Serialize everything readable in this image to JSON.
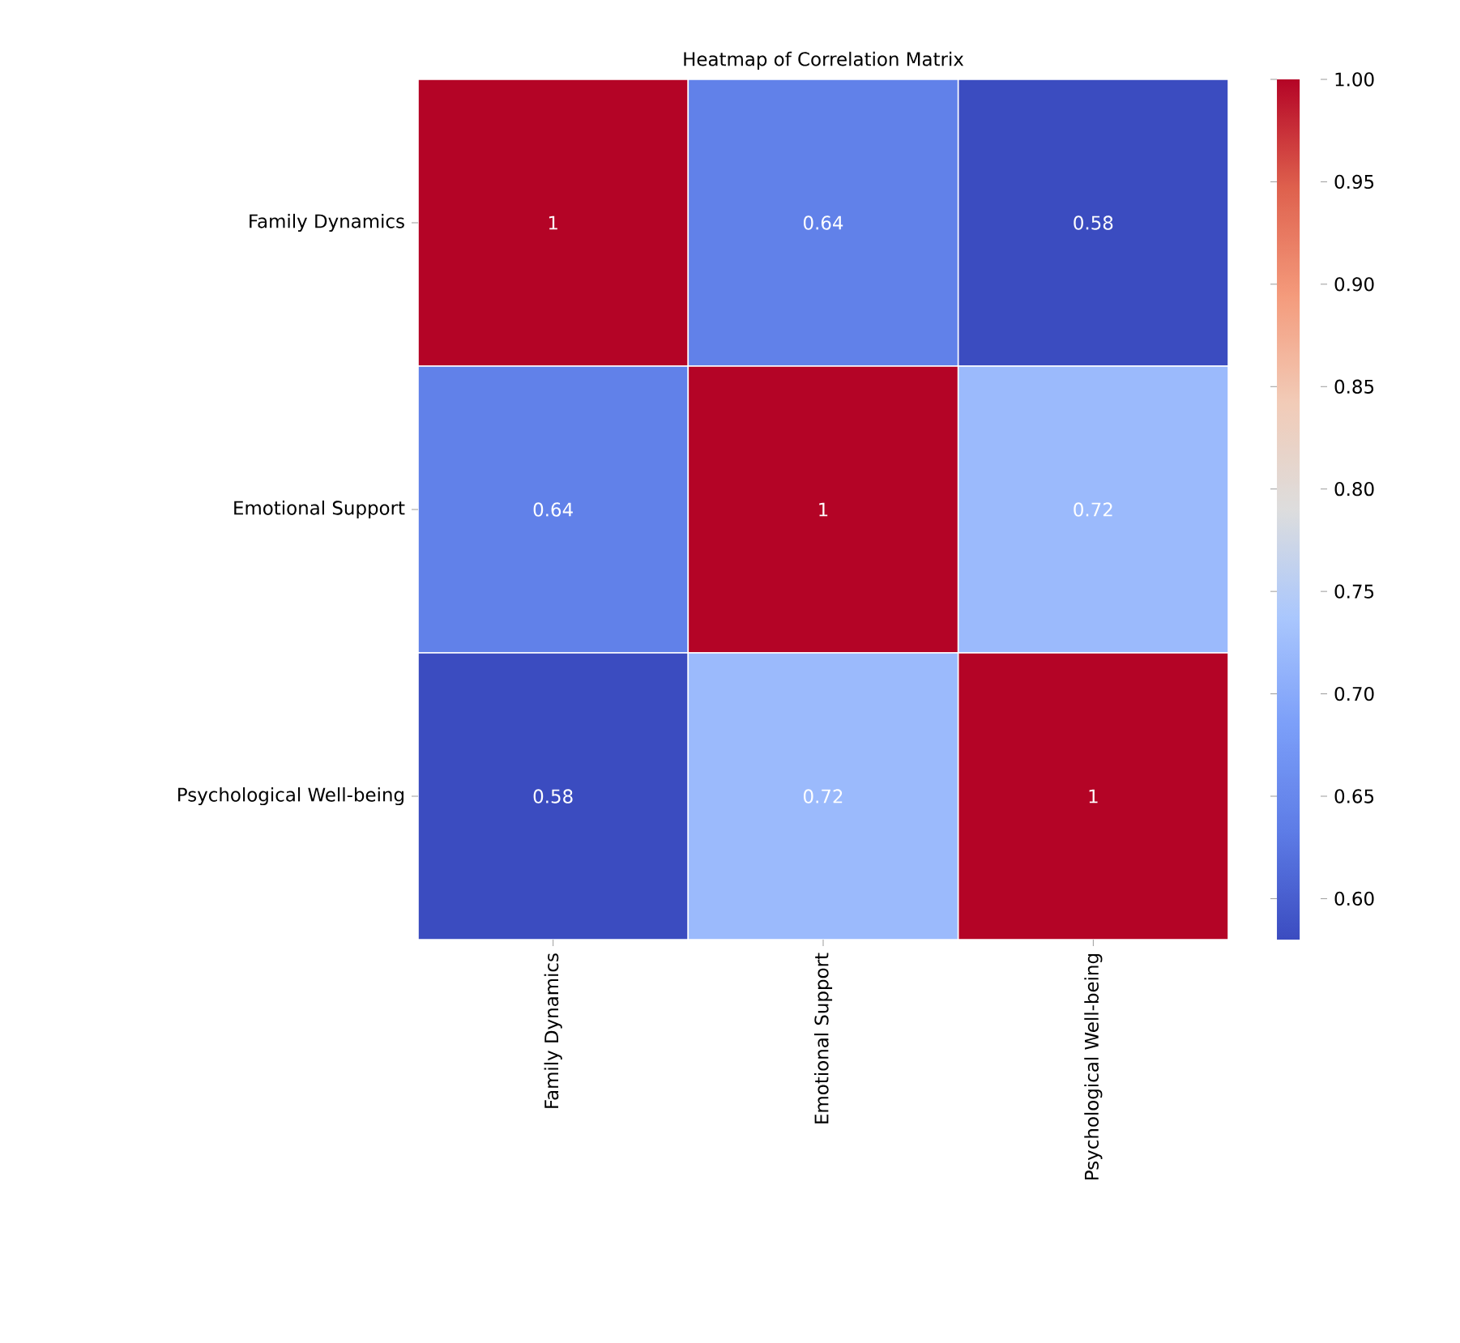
{
  "chart_data": {
    "type": "heatmap",
    "title": "Heatmap of Correlation Matrix",
    "categories": [
      "Family Dynamics",
      "Emotional Support",
      "Psychological Well-being"
    ],
    "y_categories": [
      "Family Dynamics",
      "Emotional Support",
      "Psychological Well-being"
    ],
    "cells": [
      [
        1,
        0.64,
        0.58
      ],
      [
        0.64,
        1,
        0.72
      ],
      [
        0.58,
        0.72,
        1
      ]
    ],
    "clim": [
      0.58,
      1.0
    ],
    "cticks": [
      {
        "value": 0.6,
        "label": "0.60"
      },
      {
        "value": 0.65,
        "label": "0.65"
      },
      {
        "value": 0.7,
        "label": "0.70"
      },
      {
        "value": 0.75,
        "label": "0.75"
      },
      {
        "value": 0.8,
        "label": "0.80"
      },
      {
        "value": 0.85,
        "label": "0.85"
      },
      {
        "value": 0.9,
        "label": "0.90"
      },
      {
        "value": 0.95,
        "label": "0.95"
      },
      {
        "value": 1.0,
        "label": "1.00"
      }
    ],
    "data_labels": true
  }
}
